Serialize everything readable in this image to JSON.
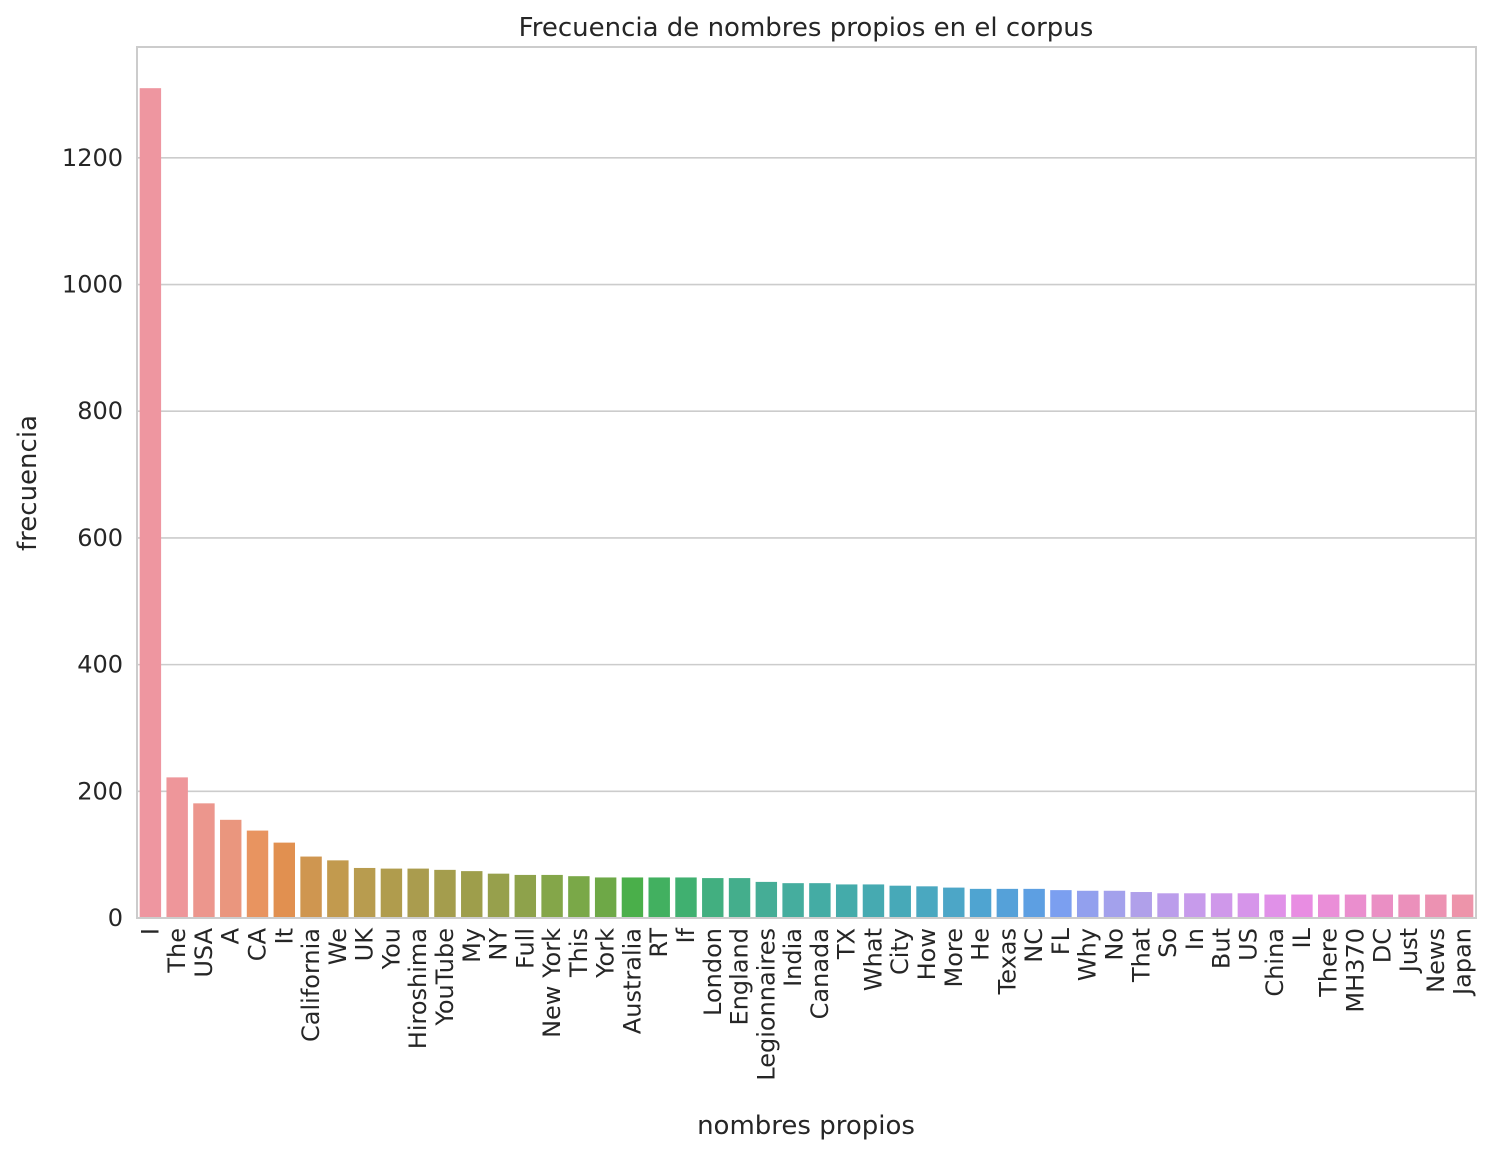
{
  "chart_data": {
    "type": "bar",
    "title": "Frecuencia de nombres propios en el corpus",
    "xlabel": "nombres propios",
    "ylabel": "frecuencia",
    "ylim": [
      0,
      1375
    ],
    "yticks": [
      0,
      200,
      400,
      600,
      800,
      1000,
      1200
    ],
    "grid": "horizontal",
    "legend": "none",
    "categories": [
      "I",
      "The",
      "USA",
      "A",
      "CA",
      "It",
      "California",
      "We",
      "UK",
      "You",
      "Hiroshima",
      "YouTube",
      "My",
      "NY",
      "Full",
      "New York",
      "This",
      "York",
      "Australia",
      "RT",
      "If",
      "London",
      "England",
      "Legionnaires",
      "India",
      "Canada",
      "TX",
      "What",
      "City",
      "How",
      "More",
      "He",
      "Texas",
      "NC",
      "FL",
      "Why",
      "No",
      "That",
      "So",
      "In",
      "But",
      "US",
      "China",
      "IL",
      "There",
      "MH370",
      "DC",
      "Just",
      "News",
      "Japan"
    ],
    "values": [
      1310,
      222,
      181,
      155,
      138,
      119,
      97,
      91,
      79,
      78,
      78,
      76,
      74,
      70,
      68,
      68,
      66,
      64,
      64,
      64,
      64,
      63,
      63,
      57,
      55,
      55,
      53,
      53,
      51,
      50,
      48,
      46,
      46,
      46,
      44,
      43,
      43,
      41,
      39,
      39,
      39,
      39,
      37,
      37,
      37,
      37,
      37,
      37,
      37,
      37
    ],
    "colors": [
      "#ee96a0",
      "#ee969a",
      "#ec968d",
      "#ea967e",
      "#e89460",
      "#e19050",
      "#cf9650",
      "#c29a4e",
      "#b89c4f",
      "#b09c4d",
      "#aa9c4e",
      "#a49d4d",
      "#9e9e4b",
      "#97a04c",
      "#8ea24b",
      "#84a649",
      "#7aa848",
      "#6ea847",
      "#4aaf4a",
      "#42b060",
      "#40b070",
      "#42af80",
      "#44ae8c",
      "#45ad96",
      "#45ad9e",
      "#44aca4",
      "#44abaa",
      "#46aab1",
      "#47a9b8",
      "#4aa8c0",
      "#4ca6c7",
      "#4fa4d1",
      "#55a1d9",
      "#5d9fe2",
      "#7b9ff0",
      "#92a0ee",
      "#a3a1ec",
      "#b0a0ea",
      "#bb9deb",
      "#c79beb",
      "#cf98ea",
      "#d695ea",
      "#e091e8",
      "#e88de2",
      "#ea8ed8",
      "#ea8ece",
      "#ea8fc4",
      "#eb90bb",
      "#ec92b2",
      "#ed94aa"
    ]
  }
}
